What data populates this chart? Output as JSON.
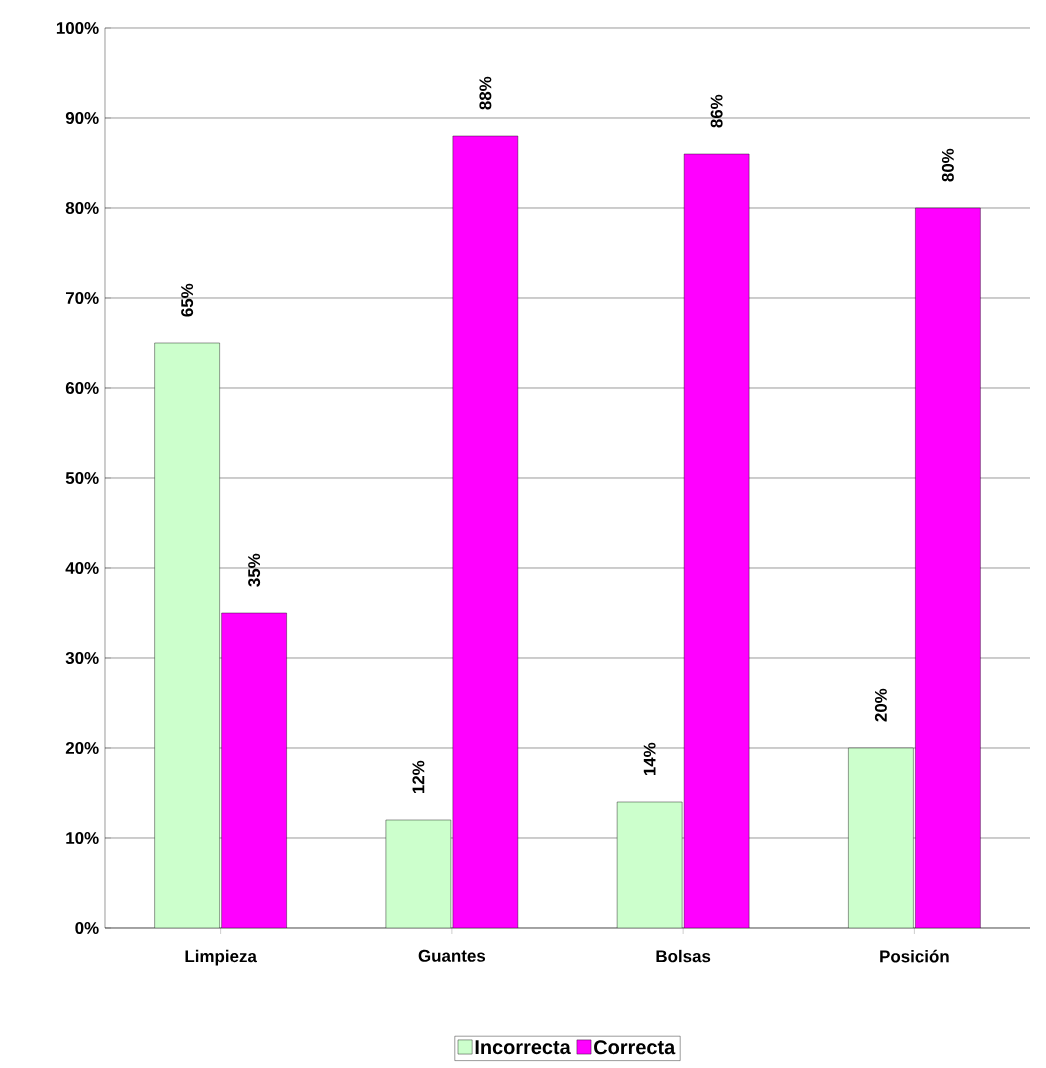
{
  "chart_data": {
    "type": "bar",
    "categories": [
      "Limpieza",
      "Guantes",
      "Bolsas",
      "Posición"
    ],
    "series": [
      {
        "name": "Incorrecta",
        "color": "#ccffcc",
        "values": [
          65,
          12,
          14,
          20
        ],
        "value_labels": [
          "65%",
          "12%",
          "14%",
          "20%"
        ]
      },
      {
        "name": "Correcta",
        "color": "#ff00ff",
        "values": [
          35,
          88,
          86,
          80
        ],
        "value_labels": [
          "35%",
          "88%",
          "86%",
          "80%"
        ]
      }
    ],
    "ylim": [
      0,
      100
    ],
    "yticks": [
      {
        "value": 0,
        "label": "0%"
      },
      {
        "value": 10,
        "label": "10%"
      },
      {
        "value": 20,
        "label": "20%"
      },
      {
        "value": 30,
        "label": "30%"
      },
      {
        "value": 40,
        "label": "40%"
      },
      {
        "value": 50,
        "label": "50%"
      },
      {
        "value": 60,
        "label": "60%"
      },
      {
        "value": 70,
        "label": "70%"
      },
      {
        "value": 80,
        "label": "80%"
      },
      {
        "value": 90,
        "label": "90%"
      },
      {
        "value": 100,
        "label": "100%"
      }
    ],
    "grid": "y",
    "legend": "bottom"
  }
}
